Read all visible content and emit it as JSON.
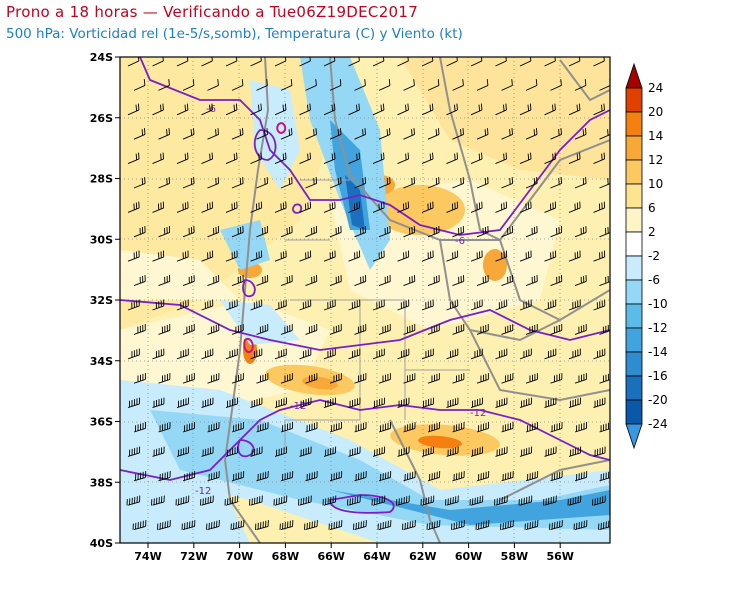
{
  "title": "Prono a 18 horas — Verificando a Tue06Z19DEC2017",
  "subtitle": "500 hPa: Vorticidad rel (1e-5/s,somb), Temperatura (C) y Viento (kt)",
  "lat_labels": [
    "24S",
    "26S",
    "28S",
    "30S",
    "32S",
    "34S",
    "36S",
    "38S",
    "40S"
  ],
  "lon_labels": [
    "74W",
    "72W",
    "70W",
    "68W",
    "66W",
    "64W",
    "62W",
    "60W",
    "58W",
    "56W"
  ],
  "colorbar": {
    "labels": [
      "24",
      "20",
      "14",
      "12",
      "10",
      "6",
      "2",
      "-2",
      "-6",
      "-10",
      "-12",
      "-14",
      "-16",
      "-20",
      "-24"
    ],
    "colors": [
      "#a50000",
      "#e04000",
      "#f58010",
      "#f8a838",
      "#fcc860",
      "#fde490",
      "#fdf5c8",
      "#ffffff",
      "#c8ecfb",
      "#94d8f5",
      "#5cbce8",
      "#42a4de",
      "#2e8cd0",
      "#1a70bc",
      "#0a58a8",
      "#3a98e0"
    ]
  },
  "contour_labels": [
    "-6",
    "-6",
    "-12",
    "-12",
    "-12"
  ],
  "colors": {
    "title": "#c8001e",
    "subtitle": "#1e7fc8",
    "temp_contour": "#7a1fc8",
    "border": "#909090"
  }
}
